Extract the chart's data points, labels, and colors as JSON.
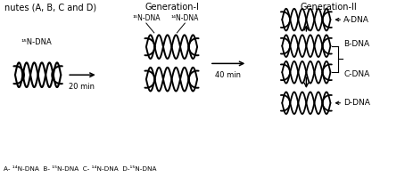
{
  "title_top": "nutes (A, B, C and D)",
  "bottom_label": "A- ¹⁴N-DNA  B- ¹⁵N-DNA  C- ¹⁴N-DNA  D-¹⁵N-DNA",
  "gen1_label": "Generation-I",
  "gen2_label": "Generation-II",
  "label_15N_start": "¹⁵N-DNA",
  "label_15N_gen1": "¹⁵N-DNA",
  "label_14N_gen1": "¹⁴N-DNA",
  "arrow1_label": "20 min",
  "arrow2_label": "40 min",
  "dna_labels": [
    "A-DNA",
    "B-DNA",
    "C-DNA",
    "D-DNA"
  ],
  "bg_color": "#ffffff",
  "line_color": "#000000",
  "fig_width": 4.54,
  "fig_height": 1.99,
  "dpi": 100
}
